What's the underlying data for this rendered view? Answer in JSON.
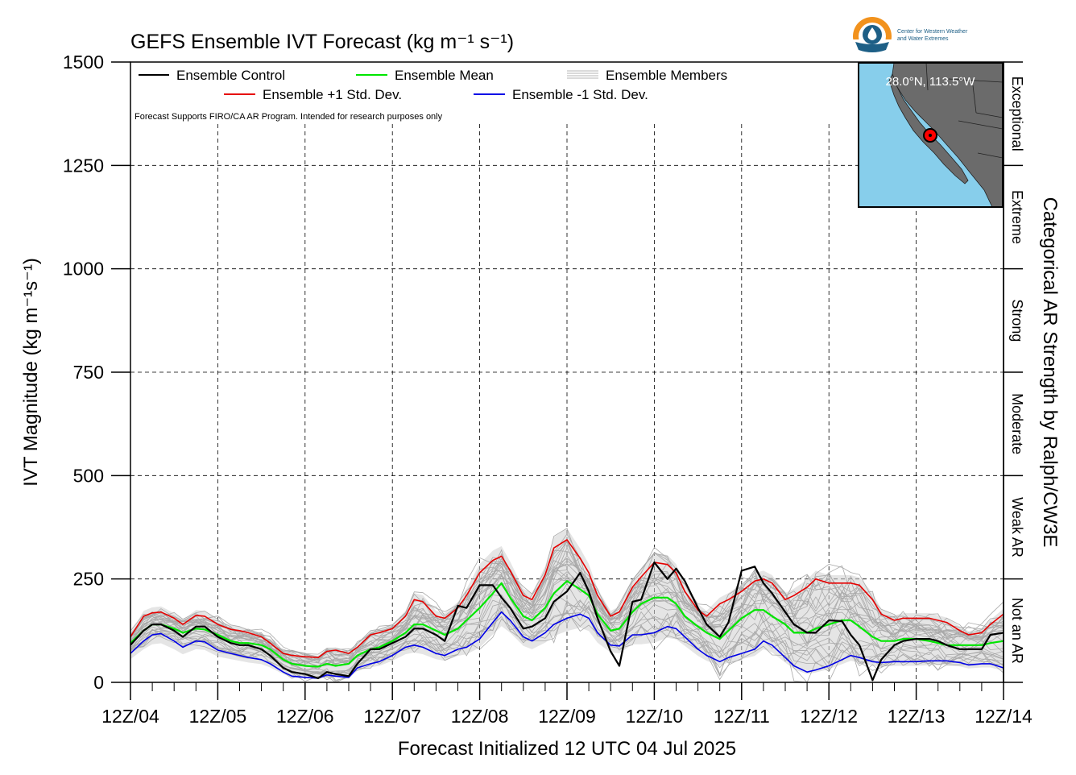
{
  "chart_data": {
    "type": "line",
    "title": "GEFS Ensemble IVT Forecast (kg m⁻¹ s⁻¹)",
    "ylabel": "IVT Magnitude (kg m⁻¹s⁻¹)",
    "xlabel": "Forecast Initialized 12 UTC 04 Jul 2025",
    "right_label": "Categorical AR Strength by Ralph/CW3E",
    "note": "Forecast Supports FIRO/CA AR Program. Intended for research purposes only",
    "ylim": [
      0,
      1500
    ],
    "xlim": [
      0,
      10
    ],
    "x_unit": "days from 12Z 04 Jul 2025",
    "yticks": [
      0,
      250,
      500,
      750,
      1000,
      1250,
      1500
    ],
    "ytick_labels": [
      "0",
      "250",
      "500",
      "750",
      "1000",
      "1250",
      "1500"
    ],
    "xticks": [
      0,
      1,
      2,
      3,
      4,
      5,
      6,
      7,
      8,
      9,
      10
    ],
    "xtick_labels": [
      "12Z/04",
      "12Z/05",
      "12Z/06",
      "12Z/07",
      "12Z/08",
      "12Z/09",
      "12Z/10",
      "12Z/11",
      "12Z/12",
      "12Z/13",
      "12Z/14"
    ],
    "grid": true,
    "legend_position": "top-left",
    "categories_right": [
      {
        "label": "Not an AR",
        "from": 0,
        "to": 250
      },
      {
        "label": "Weak AR",
        "from": 250,
        "to": 500
      },
      {
        "label": "Moderate",
        "from": 500,
        "to": 750
      },
      {
        "label": "Strong",
        "from": 750,
        "to": 1000
      },
      {
        "label": "Extreme",
        "from": 1000,
        "to": 1250
      },
      {
        "label": "Exceptional",
        "from": 1250,
        "to": 1500
      }
    ],
    "legend": [
      {
        "label": "Ensemble Control",
        "color": "#000000",
        "style": "line"
      },
      {
        "label": "Ensemble Mean",
        "color": "#00e600",
        "style": "line"
      },
      {
        "label": "Ensemble Members",
        "color": "#b4b4b4",
        "style": "multi"
      },
      {
        "label": "Ensemble +1 Std. Dev.",
        "color": "#e60000",
        "style": "line"
      },
      {
        "label": "Ensemble -1 Std. Dev.",
        "color": "#0000e6",
        "style": "line"
      }
    ],
    "series": [
      {
        "name": "Ensemble Control",
        "color": "#000000",
        "width": 2.2,
        "x": [
          0.0,
          0.15,
          0.25,
          0.35,
          0.5,
          0.6,
          0.75,
          0.85,
          1.0,
          1.15,
          1.25,
          1.35,
          1.5,
          1.6,
          1.75,
          1.85,
          2.0,
          2.15,
          2.25,
          2.35,
          2.5,
          2.6,
          2.75,
          2.85,
          3.0,
          3.15,
          3.25,
          3.35,
          3.5,
          3.6,
          3.75,
          3.85,
          4.0,
          4.15,
          4.25,
          4.35,
          4.5,
          4.6,
          4.75,
          4.85,
          5.0,
          5.15,
          5.25,
          5.35,
          5.5,
          5.6,
          5.75,
          5.85,
          6.0,
          6.15,
          6.25,
          6.35,
          6.5,
          6.6,
          6.75,
          6.85,
          7.0,
          7.15,
          7.25,
          7.35,
          7.5,
          7.6,
          7.75,
          7.85,
          8.0,
          8.15,
          8.25,
          8.35,
          8.5,
          8.6,
          8.75,
          8.85,
          9.0,
          9.15,
          9.25,
          9.35,
          9.5,
          9.6,
          9.75,
          9.85,
          10.0
        ],
        "y": [
          90,
          125,
          140,
          140,
          125,
          110,
          135,
          135,
          110,
          95,
          90,
          90,
          80,
          65,
          35,
          25,
          20,
          10,
          25,
          20,
          15,
          45,
          80,
          80,
          95,
          110,
          130,
          130,
          115,
          100,
          185,
          180,
          235,
          235,
          205,
          180,
          130,
          135,
          155,
          195,
          220,
          265,
          220,
          155,
          75,
          40,
          195,
          200,
          290,
          250,
          275,
          245,
          180,
          140,
          110,
          145,
          270,
          280,
          240,
          215,
          170,
          140,
          120,
          120,
          150,
          148,
          115,
          90,
          5,
          55,
          90,
          100,
          105,
          105,
          100,
          90,
          80,
          80,
          80,
          115,
          120
        ]
      },
      {
        "name": "Ensemble Mean",
        "color": "#00e600",
        "width": 2.2,
        "x": [
          0.0,
          0.15,
          0.25,
          0.35,
          0.5,
          0.6,
          0.75,
          0.85,
          1.0,
          1.15,
          1.25,
          1.35,
          1.5,
          1.6,
          1.75,
          1.85,
          2.0,
          2.15,
          2.25,
          2.35,
          2.5,
          2.6,
          2.75,
          2.85,
          3.0,
          3.15,
          3.25,
          3.35,
          3.5,
          3.6,
          3.75,
          3.85,
          4.0,
          4.15,
          4.25,
          4.35,
          4.5,
          4.6,
          4.75,
          4.85,
          5.0,
          5.15,
          5.25,
          5.35,
          5.5,
          5.6,
          5.75,
          5.85,
          6.0,
          6.15,
          6.25,
          6.35,
          6.5,
          6.6,
          6.75,
          6.85,
          7.0,
          7.15,
          7.25,
          7.35,
          7.5,
          7.6,
          7.75,
          7.85,
          8.0,
          8.15,
          8.25,
          8.35,
          8.5,
          8.6,
          8.75,
          8.85,
          9.0,
          9.15,
          9.25,
          9.35,
          9.5,
          9.6,
          9.75,
          9.85,
          10.0
        ],
        "y": [
          95,
          125,
          140,
          140,
          130,
          120,
          130,
          128,
          115,
          100,
          95,
          95,
          90,
          80,
          55,
          45,
          40,
          38,
          45,
          40,
          45,
          65,
          80,
          85,
          100,
          120,
          140,
          140,
          125,
          115,
          130,
          150,
          180,
          215,
          240,
          205,
          160,
          150,
          180,
          215,
          245,
          225,
          210,
          165,
          125,
          130,
          170,
          190,
          205,
          205,
          190,
          160,
          135,
          120,
          105,
          125,
          155,
          175,
          175,
          160,
          140,
          120,
          120,
          130,
          140,
          150,
          150,
          135,
          110,
          100,
          100,
          105,
          105,
          100,
          95,
          90,
          90,
          90,
          90,
          95,
          100
        ]
      },
      {
        "name": "Ensemble +1 Std. Dev.",
        "color": "#e60000",
        "width": 1.6,
        "x": [
          0.0,
          0.15,
          0.25,
          0.35,
          0.5,
          0.6,
          0.75,
          0.85,
          1.0,
          1.15,
          1.25,
          1.35,
          1.5,
          1.6,
          1.75,
          1.85,
          2.0,
          2.15,
          2.25,
          2.35,
          2.5,
          2.6,
          2.75,
          2.85,
          3.0,
          3.15,
          3.25,
          3.35,
          3.5,
          3.6,
          3.75,
          3.85,
          4.0,
          4.15,
          4.25,
          4.35,
          4.5,
          4.6,
          4.75,
          4.85,
          5.0,
          5.15,
          5.25,
          5.35,
          5.5,
          5.6,
          5.75,
          5.85,
          6.0,
          6.15,
          6.25,
          6.35,
          6.5,
          6.6,
          6.75,
          6.85,
          7.0,
          7.15,
          7.25,
          7.35,
          7.5,
          7.6,
          7.75,
          7.85,
          8.0,
          8.15,
          8.25,
          8.35,
          8.5,
          8.6,
          8.75,
          8.85,
          9.0,
          9.15,
          9.25,
          9.35,
          9.5,
          9.6,
          9.75,
          9.85,
          10.0
        ],
        "y": [
          110,
          160,
          168,
          170,
          155,
          140,
          162,
          160,
          140,
          128,
          125,
          120,
          110,
          95,
          70,
          65,
          62,
          60,
          75,
          78,
          70,
          85,
          115,
          120,
          130,
          160,
          200,
          195,
          160,
          155,
          180,
          210,
          265,
          295,
          305,
          270,
          210,
          200,
          260,
          325,
          345,
          300,
          265,
          210,
          160,
          170,
          230,
          255,
          290,
          285,
          265,
          220,
          175,
          160,
          190,
          200,
          220,
          245,
          250,
          240,
          200,
          210,
          230,
          250,
          240,
          240,
          240,
          235,
          200,
          165,
          150,
          155,
          155,
          155,
          150,
          145,
          125,
          115,
          120,
          140,
          165
        ]
      },
      {
        "name": "Ensemble -1 Std. Dev.",
        "color": "#0000e6",
        "width": 1.6,
        "x": [
          0.0,
          0.15,
          0.25,
          0.35,
          0.5,
          0.6,
          0.75,
          0.85,
          1.0,
          1.15,
          1.25,
          1.35,
          1.5,
          1.6,
          1.75,
          1.85,
          2.0,
          2.15,
          2.25,
          2.35,
          2.5,
          2.6,
          2.75,
          2.85,
          3.0,
          3.15,
          3.25,
          3.35,
          3.5,
          3.6,
          3.75,
          3.85,
          4.0,
          4.15,
          4.25,
          4.35,
          4.5,
          4.6,
          4.75,
          4.85,
          5.0,
          5.15,
          5.25,
          5.35,
          5.5,
          5.6,
          5.75,
          5.85,
          6.0,
          6.15,
          6.25,
          6.35,
          6.5,
          6.6,
          6.75,
          6.85,
          7.0,
          7.15,
          7.25,
          7.35,
          7.5,
          7.6,
          7.75,
          7.85,
          8.0,
          8.15,
          8.25,
          8.35,
          8.5,
          8.6,
          8.75,
          8.85,
          9.0,
          9.15,
          9.25,
          9.35,
          9.5,
          9.6,
          9.75,
          9.85,
          10.0
        ],
        "y": [
          70,
          100,
          115,
          118,
          100,
          85,
          100,
          98,
          78,
          70,
          65,
          60,
          55,
          45,
          25,
          15,
          12,
          10,
          18,
          15,
          12,
          35,
          45,
          50,
          65,
          85,
          90,
          85,
          70,
          65,
          80,
          85,
          105,
          145,
          170,
          150,
          110,
          100,
          120,
          140,
          155,
          165,
          155,
          120,
          90,
          88,
          115,
          115,
          120,
          135,
          130,
          110,
          80,
          65,
          50,
          60,
          70,
          80,
          100,
          90,
          60,
          40,
          25,
          30,
          40,
          55,
          65,
          60,
          50,
          48,
          50,
          50,
          50,
          52,
          52,
          52,
          48,
          42,
          45,
          45,
          35
        ]
      }
    ]
  },
  "map_inset": {
    "coordinate": "28.0°N, 113.5°W",
    "ocean_color": "#87ceeb",
    "land_color": "#6b6b6b",
    "marker_color": "#ff0000"
  },
  "logo": {
    "line1": "Center for Western Weather",
    "line2": "and Water Extremes",
    "colors": [
      "#f2921d",
      "#1d5f86"
    ]
  }
}
